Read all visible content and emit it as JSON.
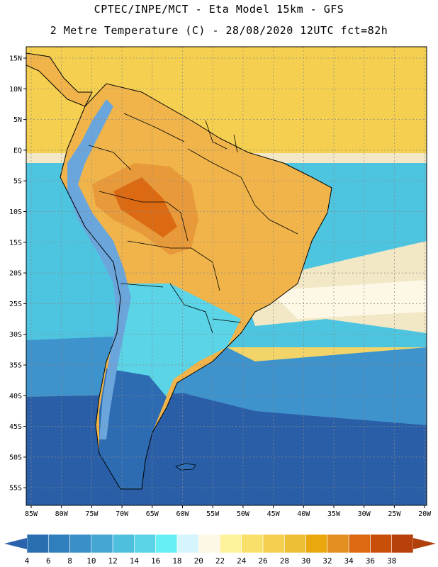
{
  "title_line1": "CPTEC/INPE/MCT -  Eta Model 15km - GFS",
  "title_line2": "2 Metre Temperature (C) - 28/08/2020 12UTC fct=82h",
  "lat_labels": [
    "15N",
    "10N",
    "5N",
    "EQ",
    "5S",
    "10S",
    "15S",
    "20S",
    "25S",
    "30S",
    "35S",
    "40S",
    "45S",
    "50S",
    "55S"
  ],
  "lon_labels": [
    "85W",
    "80W",
    "75W",
    "70W",
    "65W",
    "60W",
    "55W",
    "50W",
    "45W",
    "40W",
    "35W",
    "30W",
    "25W",
    "20W"
  ],
  "colorbar": {
    "labels": [
      "4",
      "6",
      "8",
      "10",
      "12",
      "14",
      "16",
      "18",
      "20",
      "22",
      "24",
      "26",
      "28",
      "30",
      "32",
      "34",
      "36",
      "38"
    ],
    "colors": [
      "#2a6fb0",
      "#2f7fbd",
      "#3a8fc8",
      "#45a6d4",
      "#4fbfde",
      "#5ad4e6",
      "#66f0f5",
      "#d4f5fb",
      "#fdf7e6",
      "#fdf29a",
      "#f9e06a",
      "#f5d050",
      "#efbe37",
      "#eaa80e",
      "#e48f21",
      "#dc6a12",
      "#c84f07",
      "#b8400a"
    ],
    "low_arrow_color": "#2b63ad",
    "high_arrow_color": "#b13f0b"
  },
  "map_colors": {
    "ocean_cold": "#2a5fa8",
    "ocean_cool": "#3f93cd",
    "ocean_mid": "#4ec5e0",
    "ocean_warm": "#f2e8c6",
    "ocean_tropical": "#f3d468",
    "land_hot": "#e89a3a",
    "land_warm": "#f0b44a",
    "andes": "#6aa6dc",
    "patagonia": "#2d6cb3"
  }
}
